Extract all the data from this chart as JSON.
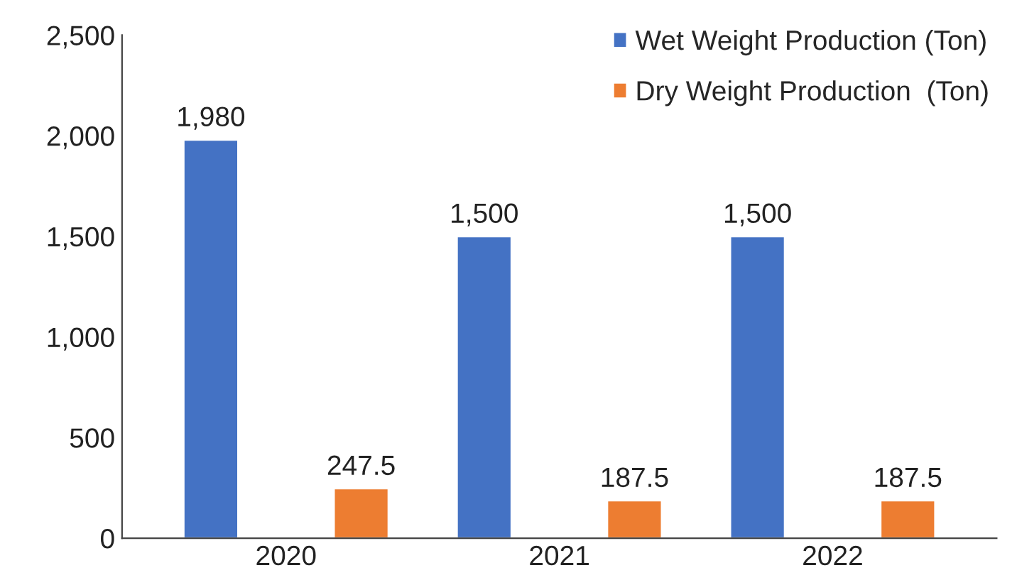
{
  "chart_data": {
    "type": "bar",
    "categories": [
      "2020",
      "2021",
      "2022"
    ],
    "series": [
      {
        "name": "Wet Weight Production (Ton)",
        "color": "#4472c4",
        "values": [
          1980,
          1500,
          1500
        ],
        "value_labels": [
          "1,980",
          "1,500",
          "1,500"
        ]
      },
      {
        "name": "Dry Weight Production  (Ton)",
        "color": "#ed7d31",
        "values": [
          247.5,
          187.5,
          187.5
        ],
        "value_labels": [
          "247.5",
          "187.5",
          "187.5"
        ]
      }
    ],
    "ylim": [
      0,
      2500
    ],
    "yticks": [
      {
        "value": 0,
        "label": "0"
      },
      {
        "value": 500,
        "label": "500"
      },
      {
        "value": 1000,
        "label": "1,000"
      },
      {
        "value": 1500,
        "label": "1,500"
      },
      {
        "value": 2000,
        "label": "2,000"
      },
      {
        "value": 2500,
        "label": "2,500"
      }
    ],
    "grid": false,
    "legend": "top right"
  }
}
